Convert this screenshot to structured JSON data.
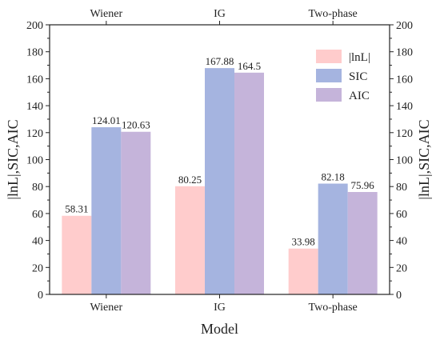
{
  "chart_data": {
    "type": "bar",
    "categories": [
      "Wiener",
      "IG",
      "Two-phase"
    ],
    "series": [
      {
        "name": "|lnL|",
        "values": [
          58.31,
          80.25,
          33.98
        ],
        "color": "#ffcccc"
      },
      {
        "name": "SIC",
        "values": [
          124.01,
          167.88,
          82.18
        ],
        "color": "#a5b4e0"
      },
      {
        "name": "AIC",
        "values": [
          120.63,
          164.5,
          75.96
        ],
        "color": "#c5b4da"
      }
    ],
    "data_labels": [
      [
        "58.31",
        "124.01",
        "120.63"
      ],
      [
        "80.25",
        "167.88",
        "164.5"
      ],
      [
        "33.98",
        "82.18",
        "75.96"
      ]
    ],
    "xlabel": "Model",
    "ylabel": "|lnL|,SIC,AIC",
    "ylim": [
      0,
      200
    ],
    "yticks": [
      0,
      20,
      40,
      60,
      80,
      100,
      120,
      140,
      160,
      180,
      200
    ],
    "grid": false,
    "legend_position": "top-right",
    "mirror_axes": true
  }
}
